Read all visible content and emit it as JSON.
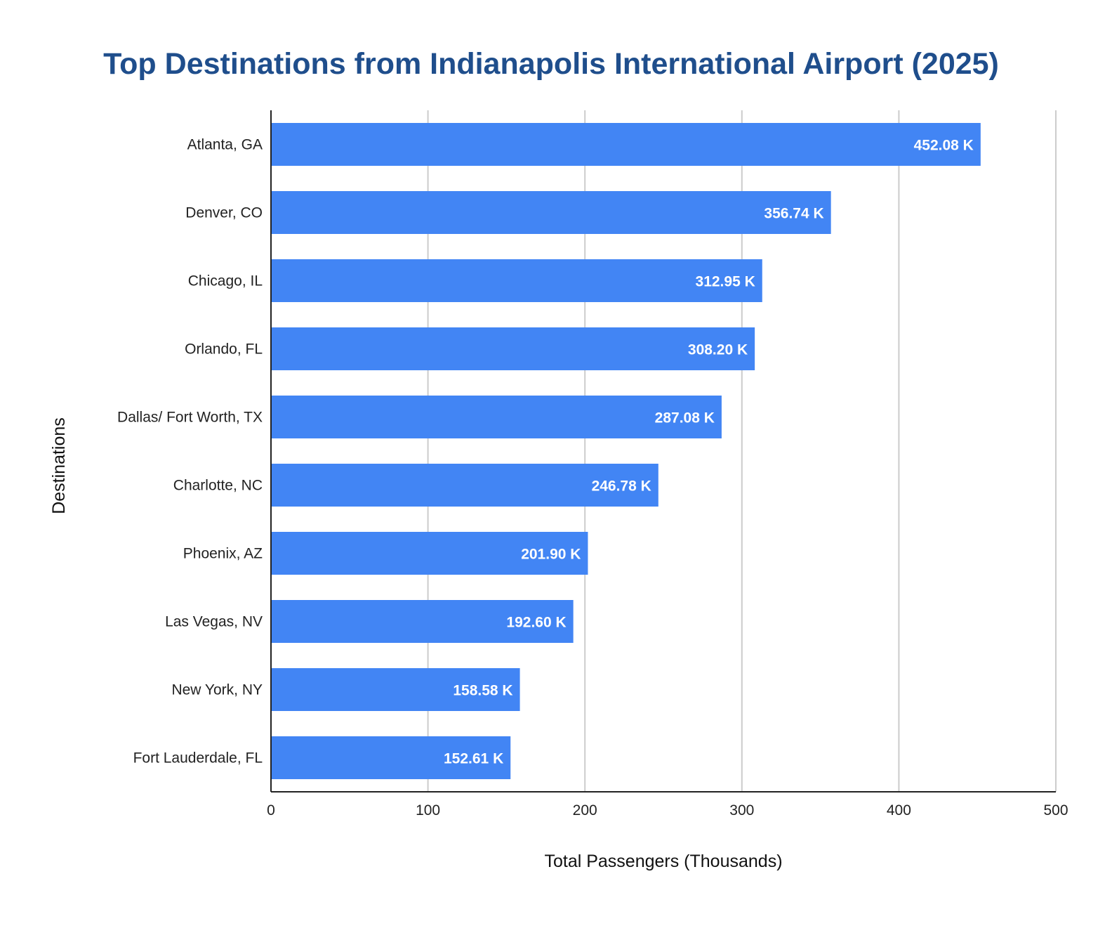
{
  "chart_data": {
    "type": "bar",
    "orientation": "horizontal",
    "title": "Top Destinations from Indianapolis International Airport (2025)",
    "xlabel": "Total Passengers (Thousands)",
    "ylabel": "Destinations",
    "categories": [
      "Atlanta, GA",
      "Denver, CO",
      "Chicago, IL",
      "Orlando, FL",
      "Dallas/ Fort Worth, TX",
      "Charlotte, NC",
      "Phoenix, AZ",
      "Las Vegas, NV",
      "New York, NY",
      "Fort Lauderdale, FL"
    ],
    "values": [
      452.08,
      356.74,
      312.95,
      308.2,
      287.08,
      246.78,
      201.9,
      192.6,
      158.58,
      152.61
    ],
    "data_labels": [
      "452.08 K",
      "356.74 K",
      "312.95 K",
      "308.20 K",
      "287.08 K",
      "246.78 K",
      "201.90 K",
      "192.60 K",
      "158.58 K",
      "152.61 K"
    ],
    "xlim": [
      0,
      500
    ],
    "xticks": [
      0,
      100,
      200,
      300,
      400,
      500
    ],
    "xtick_labels": [
      "0",
      "100",
      "200",
      "300",
      "400",
      "500"
    ],
    "grid": true,
    "legend": "none",
    "colors": {
      "bar": "#4285f4",
      "title": "#1f4e8c",
      "grid": "#cccccc",
      "axis": "#222222"
    }
  }
}
